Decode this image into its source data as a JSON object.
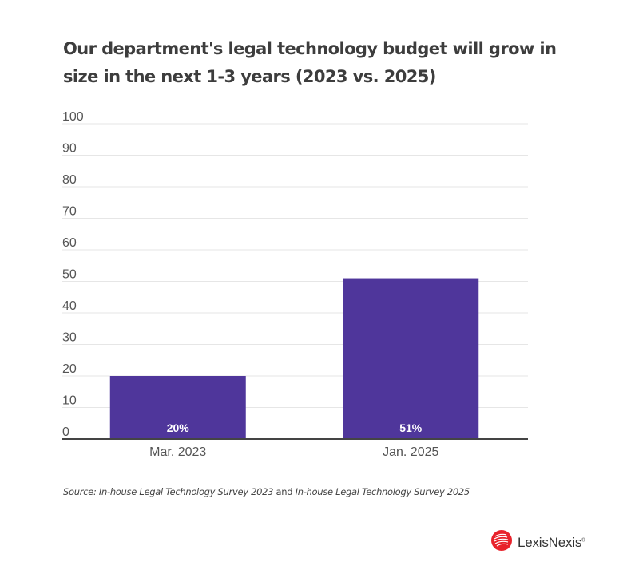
{
  "chart_data": {
    "type": "bar",
    "title": "Our department's legal technology budget will grow in size in the next 1-3 years (2023 vs. 2025)",
    "xlabel": "",
    "ylabel": "",
    "categories": [
      "Mar. 2023",
      "Jan. 2025"
    ],
    "values": [
      20,
      51
    ],
    "data_labels": [
      "20%",
      "51%"
    ],
    "ylim": [
      0,
      100
    ],
    "yticks": [
      0,
      10,
      20,
      30,
      40,
      50,
      60,
      70,
      80,
      90,
      100
    ],
    "grid": true,
    "legend": "none",
    "colors": {
      "bar": "#4f369b",
      "grid": "#e6e6e6",
      "axis": "#444444",
      "tick_text": "#555555",
      "bar_label": "#ffffff"
    }
  },
  "source": {
    "prefix": "Source: ",
    "survey_1": "In-house Legal Technology Survey 2023",
    "conjunction": " and ",
    "survey_2": "In-house Legal Technology Survey 2025"
  },
  "logo": {
    "name": "LexisNexis",
    "mark": "®",
    "icon": "lexisnexis-logo-icon",
    "color": "#e8222b"
  }
}
